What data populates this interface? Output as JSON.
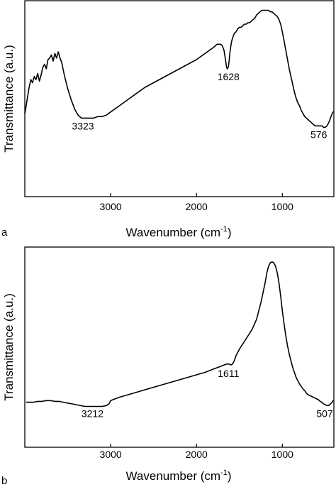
{
  "chart_data": [
    {
      "type": "line",
      "panel_label": "a",
      "xlabel": "Wavenumber (cm",
      "xlabel_sup": "-1",
      "xlabel_close": ")",
      "ylabel": "Transmittance (a.u.)",
      "xlim": [
        4000,
        400
      ],
      "x_reversed": true,
      "xticks": [
        3000,
        2000,
        1000
      ],
      "xtick_labels": [
        "3000",
        "2000",
        "1000"
      ],
      "ylim": [
        0,
        100
      ],
      "y_ticks_shown": false,
      "grid": false,
      "annotations": [
        {
          "text": "3323",
          "x": 3323,
          "y": 27
        },
        {
          "text": "1628",
          "x": 1628,
          "y": 60
        },
        {
          "text": "576",
          "x": 576,
          "y": 22
        }
      ],
      "series": [
        {
          "x": [
            4000,
            3990,
            3970,
            3950,
            3930,
            3910,
            3890,
            3870,
            3850,
            3830,
            3810,
            3790,
            3770,
            3750,
            3730,
            3710,
            3690,
            3670,
            3650,
            3630,
            3610,
            3590,
            3570,
            3540,
            3500,
            3460,
            3420,
            3380,
            3340,
            3300,
            3250,
            3200,
            3150,
            3100,
            3050,
            3000,
            2950,
            2900,
            2800,
            2700,
            2600,
            2500,
            2400,
            2300,
            2200,
            2100,
            2000,
            1950,
            1900,
            1850,
            1800,
            1780,
            1760,
            1740,
            1720,
            1700,
            1680,
            1660,
            1650,
            1640,
            1630,
            1620,
            1610,
            1600,
            1590,
            1580,
            1560,
            1540,
            1520,
            1500,
            1480,
            1460,
            1440,
            1420,
            1400,
            1380,
            1360,
            1340,
            1320,
            1300,
            1280,
            1260,
            1240,
            1220,
            1200,
            1180,
            1160,
            1140,
            1120,
            1100,
            1080,
            1060,
            1040,
            1020,
            1000,
            980,
            960,
            940,
            920,
            900,
            880,
            860,
            840,
            820,
            800,
            780,
            760,
            740,
            720,
            700,
            680,
            660,
            640,
            620,
            600,
            580,
            560,
            540,
            520,
            500,
            480,
            460,
            440,
            420,
            410
          ],
          "y": [
            30,
            33,
            40,
            47,
            52,
            50,
            54,
            52,
            56,
            51,
            55,
            60,
            62,
            59,
            65,
            66,
            68,
            64,
            69,
            66,
            70,
            66,
            63,
            55,
            46,
            39,
            33,
            29,
            27,
            27,
            27,
            27,
            28,
            28,
            29,
            31,
            33,
            35,
            39,
            43,
            47,
            50,
            53,
            56,
            59,
            62,
            65,
            67,
            69,
            71,
            73,
            74,
            75,
            75,
            75,
            74,
            71,
            64,
            60,
            59,
            60,
            64,
            70,
            74,
            77,
            79,
            82,
            83,
            85,
            86,
            86,
            87,
            88,
            88,
            89,
            89,
            90,
            91,
            92,
            94,
            95,
            96,
            97,
            97,
            97,
            97,
            97,
            96,
            96,
            95,
            94,
            93,
            91,
            88,
            83,
            77,
            71,
            65,
            59,
            54,
            49,
            44,
            40,
            37,
            35,
            32,
            30,
            28,
            27,
            26,
            25,
            24,
            23,
            22,
            22,
            22,
            22,
            22,
            21,
            21,
            22,
            24,
            27,
            30,
            31
          ]
        }
      ]
    },
    {
      "type": "line",
      "panel_label": "b",
      "xlabel": "Wavenumber (cm",
      "xlabel_sup": "-1",
      "xlabel_close": ")",
      "ylabel": "Transmittance (a.u.)",
      "xlim": [
        4000,
        400
      ],
      "x_reversed": true,
      "xticks": [
        3000,
        2000,
        1000
      ],
      "xtick_labels": [
        "3000",
        "2000",
        "1000"
      ],
      "ylim": [
        0,
        100
      ],
      "y_ticks_shown": false,
      "grid": false,
      "annotations": [
        {
          "text": "3212",
          "x": 3212,
          "y": 8
        },
        {
          "text": "1611",
          "x": 1611,
          "y": 32
        },
        {
          "text": "507",
          "x": 507,
          "y": 8
        }
      ],
      "series": [
        {
          "x": [
            3980,
            3950,
            3900,
            3850,
            3800,
            3750,
            3700,
            3650,
            3600,
            3550,
            3500,
            3450,
            3400,
            3350,
            3300,
            3250,
            3200,
            3150,
            3100,
            3050,
            3020,
            3000,
            2950,
            2900,
            2800,
            2700,
            2600,
            2500,
            2400,
            2300,
            2200,
            2100,
            2000,
            1900,
            1800,
            1750,
            1700,
            1650,
            1620,
            1600,
            1580,
            1560,
            1540,
            1500,
            1450,
            1400,
            1350,
            1300,
            1250,
            1200,
            1180,
            1160,
            1140,
            1120,
            1100,
            1080,
            1060,
            1040,
            1020,
            1000,
            980,
            960,
            940,
            920,
            900,
            880,
            860,
            840,
            820,
            800,
            780,
            760,
            740,
            720,
            700,
            680,
            660,
            640,
            620,
            600,
            580,
            560,
            540,
            520,
            500,
            480,
            460,
            440,
            420,
            410
          ],
          "y": [
            10,
            10,
            10,
            10.5,
            10.5,
            11,
            11,
            10.5,
            10.5,
            10,
            9.5,
            9,
            8.5,
            8,
            7.5,
            7.5,
            7.5,
            7.5,
            7.5,
            8,
            9,
            11,
            12,
            13,
            14.5,
            16,
            17.5,
            19,
            20.5,
            22,
            23.5,
            25,
            26.5,
            28,
            30,
            31,
            32,
            33,
            33,
            32.5,
            33,
            35,
            38,
            42,
            46,
            50,
            54,
            60,
            70,
            82,
            88,
            92,
            94,
            94.5,
            94,
            92,
            88,
            82,
            74,
            65,
            57,
            50,
            44,
            39,
            35,
            31,
            28,
            25,
            23,
            21,
            19.5,
            18,
            17,
            15.5,
            14.5,
            14,
            13.5,
            13,
            12.5,
            12,
            11.5,
            10.5,
            10,
            9,
            8.5,
            8,
            8,
            9,
            10,
            11
          ]
        }
      ]
    }
  ]
}
